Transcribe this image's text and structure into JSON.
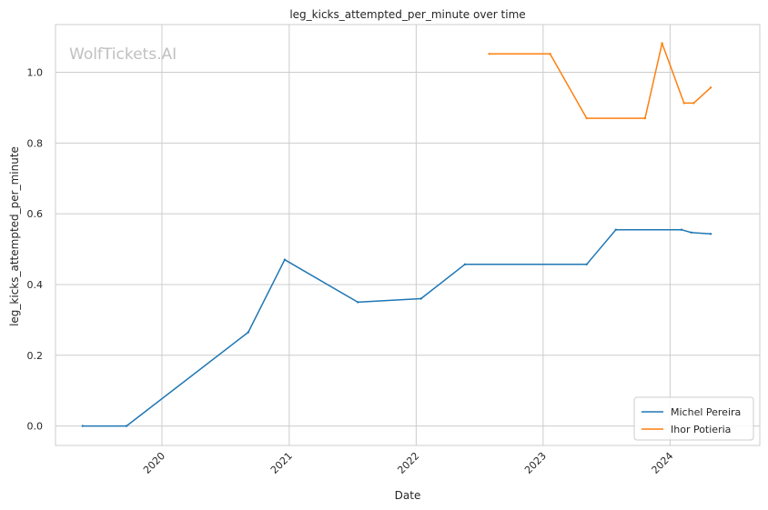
{
  "chart_data": {
    "type": "line",
    "title": "leg_kicks_attempted_per_minute over time",
    "xlabel": "Date",
    "ylabel": "leg_kicks_attempted_per_minute",
    "watermark": "WolfTickets.AI",
    "x_range": [
      "2019-03-01",
      "2024-09-15"
    ],
    "ylim": [
      -0.055,
      1.135
    ],
    "x_ticks": [
      {
        "date": "2020-01-01",
        "label": "2020"
      },
      {
        "date": "2021-01-01",
        "label": "2021"
      },
      {
        "date": "2022-01-01",
        "label": "2022"
      },
      {
        "date": "2023-01-01",
        "label": "2023"
      },
      {
        "date": "2024-01-01",
        "label": "2024"
      }
    ],
    "y_ticks": [
      {
        "value": 0.0,
        "label": "0.0"
      },
      {
        "value": 0.2,
        "label": "0.2"
      },
      {
        "value": 0.4,
        "label": "0.4"
      },
      {
        "value": 0.6,
        "label": "0.6"
      },
      {
        "value": 0.8,
        "label": "0.8"
      },
      {
        "value": 1.0,
        "label": "1.0"
      }
    ],
    "grid": true,
    "legend_position": "bottom-right",
    "series": [
      {
        "name": "Michel Pereira",
        "color": "#1f77b4",
        "points": [
          {
            "x": "2019-05-18",
            "y": 0.0
          },
          {
            "x": "2019-09-21",
            "y": 0.0
          },
          {
            "x": "2020-09-05",
            "y": 0.265
          },
          {
            "x": "2020-12-19",
            "y": 0.47
          },
          {
            "x": "2021-07-17",
            "y": 0.35
          },
          {
            "x": "2022-01-15",
            "y": 0.36
          },
          {
            "x": "2022-05-21",
            "y": 0.457
          },
          {
            "x": "2023-05-06",
            "y": 0.457
          },
          {
            "x": "2023-07-29",
            "y": 0.555
          },
          {
            "x": "2024-02-03",
            "y": 0.555
          },
          {
            "x": "2024-03-02",
            "y": 0.547
          },
          {
            "x": "2024-04-27",
            "y": 0.543
          }
        ]
      },
      {
        "name": "Ihor Potieria",
        "color": "#ff7f0e",
        "points": [
          {
            "x": "2022-07-30",
            "y": 1.052
          },
          {
            "x": "2023-01-21",
            "y": 1.052
          },
          {
            "x": "2023-05-06",
            "y": 0.87
          },
          {
            "x": "2023-10-21",
            "y": 0.87
          },
          {
            "x": "2023-12-09",
            "y": 1.082
          },
          {
            "x": "2024-02-10",
            "y": 0.913
          },
          {
            "x": "2024-03-09",
            "y": 0.913
          },
          {
            "x": "2024-04-27",
            "y": 0.957
          }
        ]
      }
    ]
  }
}
